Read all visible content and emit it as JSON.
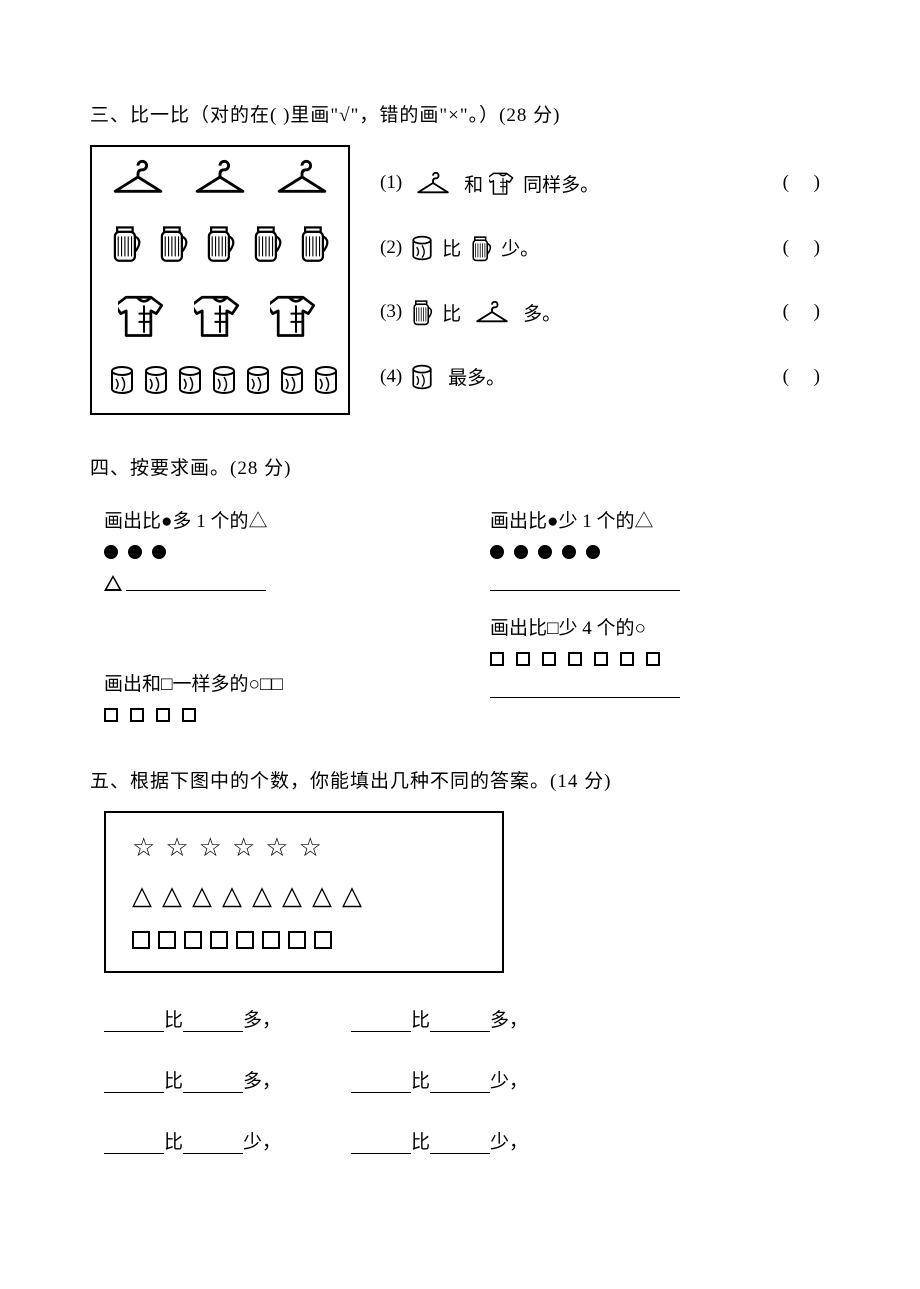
{
  "section3": {
    "title": "三、比一比（对的在(  )里画\"√\"，错的画\"×\"。）(28 分)",
    "counts": {
      "hangers": 3,
      "thermoses": 5,
      "shirts": 3,
      "cans": 7
    },
    "statements": [
      {
        "num": "(1)",
        "left_icon": "hanger",
        "mid": "和",
        "right_icon": "shirt",
        "tail": "同样多。",
        "paren": "(  )"
      },
      {
        "num": "(2)",
        "left_icon": "can",
        "mid": "比",
        "right_icon": "thermos",
        "tail": "少。",
        "paren": "(  )"
      },
      {
        "num": "(3)",
        "left_icon": "thermos",
        "mid": "比",
        "right_icon": "hanger",
        "tail": "多。",
        "paren": "(  )"
      },
      {
        "num": "(4)",
        "left_icon": "can",
        "mid": "",
        "right_icon": "",
        "tail": "最多。",
        "paren": "(  )"
      }
    ]
  },
  "section4": {
    "title": "四、按要求画。(28 分)",
    "q1": {
      "prompt": "画出比●多 1 个的△",
      "dots": 3
    },
    "q2": {
      "prompt": "画出比●少 1 个的△",
      "dots": 5
    },
    "q3": {
      "prompt": "画出比□少 4 个的○",
      "squares": 7
    },
    "q4": {
      "prompt": "画出和□一样多的○□□",
      "squares": 4
    }
  },
  "section5": {
    "title": "五、根据下图中的个数，你能填出几种不同的答案。(14 分)",
    "stars": 6,
    "triangles": 8,
    "squares": 8,
    "lines": [
      [
        {
          "a": "比",
          "b": "多，"
        },
        {
          "a": "比",
          "b": "多，"
        }
      ],
      [
        {
          "a": "比",
          "b": "多，"
        },
        {
          "a": "比",
          "b": "少，"
        }
      ],
      [
        {
          "a": "比",
          "b": "少，"
        },
        {
          "a": "比",
          "b": "少，"
        }
      ]
    ]
  },
  "colors": {
    "stroke": "#000000",
    "bg": "#ffffff"
  }
}
